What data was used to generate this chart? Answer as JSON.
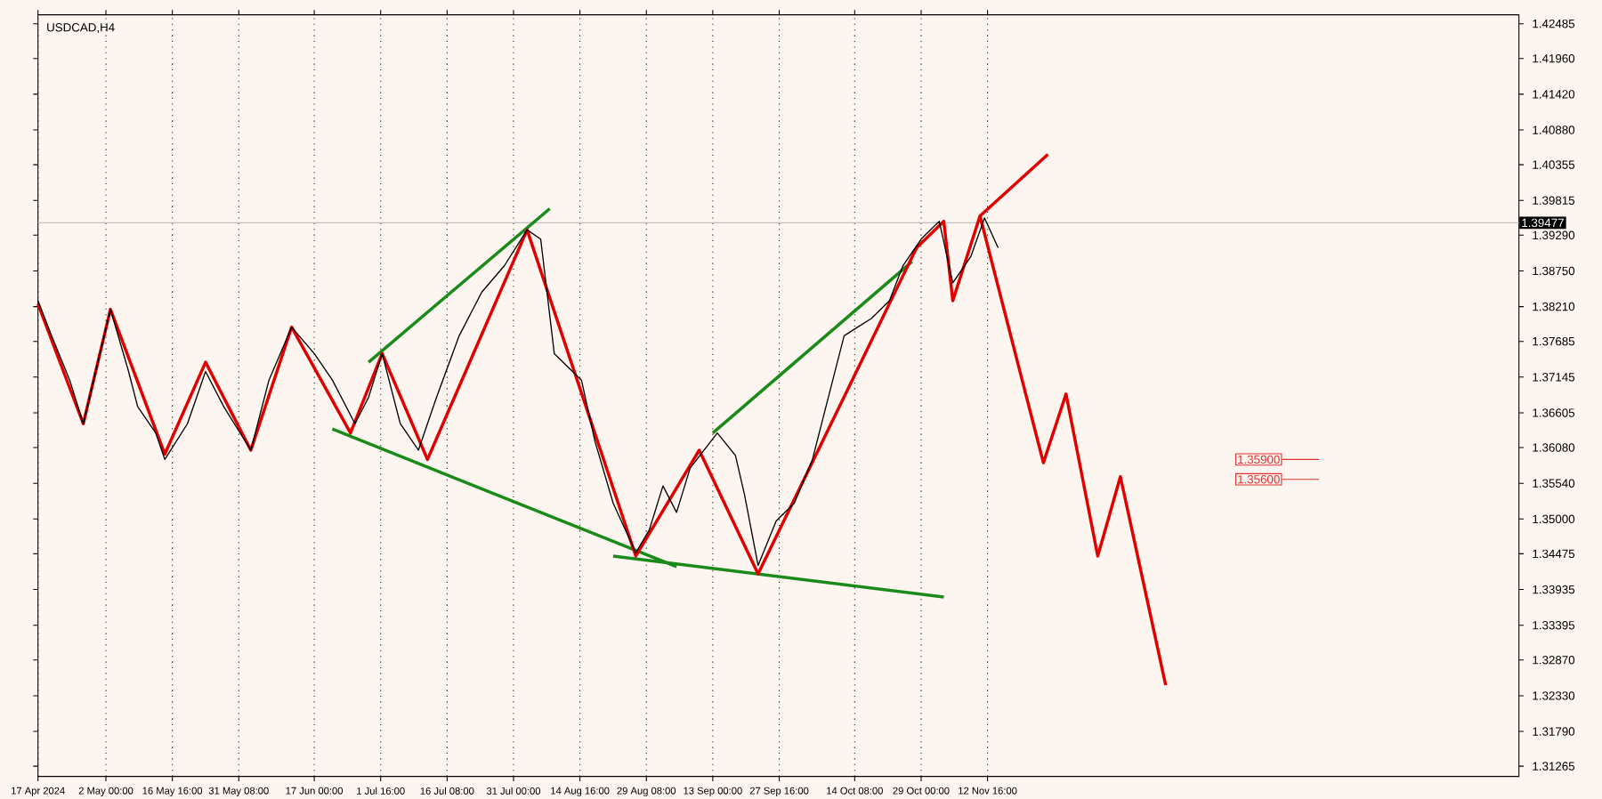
{
  "chart_data": {
    "type": "line",
    "title": "USDCAD,H4",
    "series": [
      {
        "color": "#000000",
        "x": [
          "2024-04-17",
          "2024-04-20",
          "2024-04-24",
          "2024-04-27",
          "2024-05-03",
          "2024-05-07",
          "2024-05-09",
          "2024-05-13",
          "2024-05-15",
          "2024-05-20",
          "2024-05-24",
          "2024-05-28",
          "2024-06-03",
          "2024-06-07",
          "2024-06-12",
          "2024-06-17",
          "2024-06-21",
          "2024-06-26",
          "2024-06-29",
          "2024-07-02",
          "2024-07-06",
          "2024-07-10",
          "2024-07-14",
          "2024-07-19",
          "2024-07-24",
          "2024-07-29",
          "2024-08-03",
          "2024-08-06",
          "2024-08-09",
          "2024-08-15",
          "2024-08-18",
          "2024-08-22",
          "2024-08-27",
          "2024-08-30",
          "2024-09-02",
          "2024-09-05",
          "2024-09-08",
          "2024-09-14",
          "2024-09-18",
          "2024-09-20",
          "2024-09-23",
          "2024-09-27",
          "2024-10-01",
          "2024-10-05",
          "2024-10-09",
          "2024-10-12",
          "2024-10-15",
          "2024-10-18",
          "2024-10-22",
          "2024-10-25",
          "2024-10-29",
          "2024-11-02",
          "2024-11-05",
          "2024-11-09",
          "2024-11-12",
          "2024-11-15"
        ],
        "values": [
          1.383,
          1.3777,
          1.371,
          1.3644,
          1.3817,
          1.3723,
          1.367,
          1.363,
          1.359,
          1.3644,
          1.3723,
          1.367,
          1.3604,
          1.371,
          1.379,
          1.375,
          1.371,
          1.3644,
          1.3684,
          1.375,
          1.3644,
          1.3604,
          1.3684,
          1.3777,
          1.3843,
          1.3883,
          1.3937,
          1.3923,
          1.375,
          1.371,
          1.3617,
          1.3524,
          1.3449,
          1.3484,
          1.355,
          1.351,
          1.3577,
          1.363,
          1.3596,
          1.3537,
          1.343,
          1.3497,
          1.3524,
          1.359,
          1.3697,
          1.3777,
          1.379,
          1.3803,
          1.383,
          1.3883,
          1.3923,
          1.395,
          1.3857,
          1.3897,
          1.3955,
          1.391
        ]
      },
      {
        "color": "#e00000",
        "x": [
          "2024-04-17",
          "2024-04-27",
          "2024-05-03",
          "2024-05-15",
          "2024-05-24",
          "2024-06-03",
          "2024-06-12",
          "2024-06-25",
          "2024-07-02",
          "2024-07-12",
          "2024-08-03",
          "2024-08-27",
          "2024-09-10",
          "2024-09-23",
          "2024-10-28",
          "2024-11-03",
          "2024-11-05",
          "2024-11-11",
          "2024-11-25",
          "2024-11-30",
          "2024-12-07",
          "2024-12-12",
          "2024-12-22"
        ],
        "values": [
          1.3825,
          1.3644,
          1.3817,
          1.3598,
          1.3737,
          1.3604,
          1.379,
          1.363,
          1.375,
          1.359,
          1.3937,
          1.3444,
          1.3604,
          1.3417,
          1.391,
          1.395,
          1.383,
          1.3958,
          1.3585,
          1.3689,
          1.3444,
          1.3564,
          1.3249
        ]
      },
      {
        "color": "#e00000",
        "x": [
          "2024-11-11",
          "2024-11-26"
        ],
        "values": [
          1.3958,
          1.4051
        ]
      },
      {
        "color": "#1a8a1a",
        "x": [
          "2024-06-29",
          "2024-08-08"
        ],
        "values": [
          1.3737,
          1.3969
        ]
      },
      {
        "color": "#1a8a1a",
        "x": [
          "2024-06-21",
          "2024-09-05"
        ],
        "values": [
          1.3636,
          1.3428
        ]
      },
      {
        "color": "#1a8a1a",
        "x": [
          "2024-09-13",
          "2024-10-27"
        ],
        "values": [
          1.363,
          1.3889
        ]
      },
      {
        "color": "#1a8a1a",
        "x": [
          "2024-08-22",
          "2024-11-03"
        ],
        "values": [
          1.3444,
          1.3382
        ]
      }
    ],
    "xlim": [
      "2024-04-17",
      "2025-03-10"
    ],
    "xticks": [
      {
        "value": "2024-04-17",
        "label": "17 Apr 2024"
      },
      {
        "value": "2024-05-02T00:00",
        "label": "2 May 00:00"
      },
      {
        "value": "2024-05-16T16:00",
        "label": "16 May 16:00"
      },
      {
        "value": "2024-05-31T08:00",
        "label": "31 May 08:00"
      },
      {
        "value": "2024-06-17T00:00",
        "label": "17 Jun 00:00"
      },
      {
        "value": "2024-07-01T16:00",
        "label": "1 Jul 16:00"
      },
      {
        "value": "2024-07-16T08:00",
        "label": "16 Jul 08:00"
      },
      {
        "value": "2024-07-31T00:00",
        "label": "31 Jul 00:00"
      },
      {
        "value": "2024-08-14T16:00",
        "label": "14 Aug 16:00"
      },
      {
        "value": "2024-08-29T08:00",
        "label": "29 Aug 08:00"
      },
      {
        "value": "2024-09-13T00:00",
        "label": "13 Sep 00:00"
      },
      {
        "value": "2024-09-27T16:00",
        "label": "27 Sep 16:00"
      },
      {
        "value": "2024-10-14T08:00",
        "label": "14 Oct 08:00"
      },
      {
        "value": "2024-10-29T00:00",
        "label": "29 Oct 00:00"
      },
      {
        "value": "2024-11-12T16:00",
        "label": "12 Nov 16:00"
      }
    ],
    "ylim": [
      1.3111,
      1.4262
    ],
    "yticks": [
      {
        "value": 1.31265,
        "label": "1.31265"
      },
      {
        "value": 1.3179,
        "label": "1.31790"
      },
      {
        "value": 1.3233,
        "label": "1.32330"
      },
      {
        "value": 1.3287,
        "label": "1.32870"
      },
      {
        "value": 1.33395,
        "label": "1.33395"
      },
      {
        "value": 1.33935,
        "label": "1.33935"
      },
      {
        "value": 1.34475,
        "label": "1.34475"
      },
      {
        "value": 1.35,
        "label": "1.35000"
      },
      {
        "value": 1.3554,
        "label": "1.35540"
      },
      {
        "value": 1.3608,
        "label": "1.36080"
      },
      {
        "value": 1.36605,
        "label": "1.36605"
      },
      {
        "value": 1.37145,
        "label": "1.37145"
      },
      {
        "value": 1.37685,
        "label": "1.37685"
      },
      {
        "value": 1.3821,
        "label": "1.38210"
      },
      {
        "value": 1.3875,
        "label": "1.38750"
      },
      {
        "value": 1.3929,
        "label": "1.39290"
      },
      {
        "value": 1.39815,
        "label": "1.39815"
      },
      {
        "value": 1.40355,
        "label": "1.40355"
      },
      {
        "value": 1.4088,
        "label": "1.40880"
      },
      {
        "value": 1.4142,
        "label": "1.41420"
      },
      {
        "value": 1.4196,
        "label": "1.41960"
      },
      {
        "value": 1.42485,
        "label": "1.42485"
      }
    ],
    "ref_lines": [
      {
        "axis": "y",
        "value": 1.39477,
        "label": "1.39477",
        "color": "#c0c0c0"
      },
      {
        "axis": "y",
        "value": 1.359,
        "label": "1.35900",
        "color": "#e03030"
      },
      {
        "axis": "y",
        "value": 1.356,
        "label": "1.35600",
        "color": "#e03030"
      }
    ],
    "grid": "x",
    "marker": "none",
    "line_style": "solid"
  }
}
